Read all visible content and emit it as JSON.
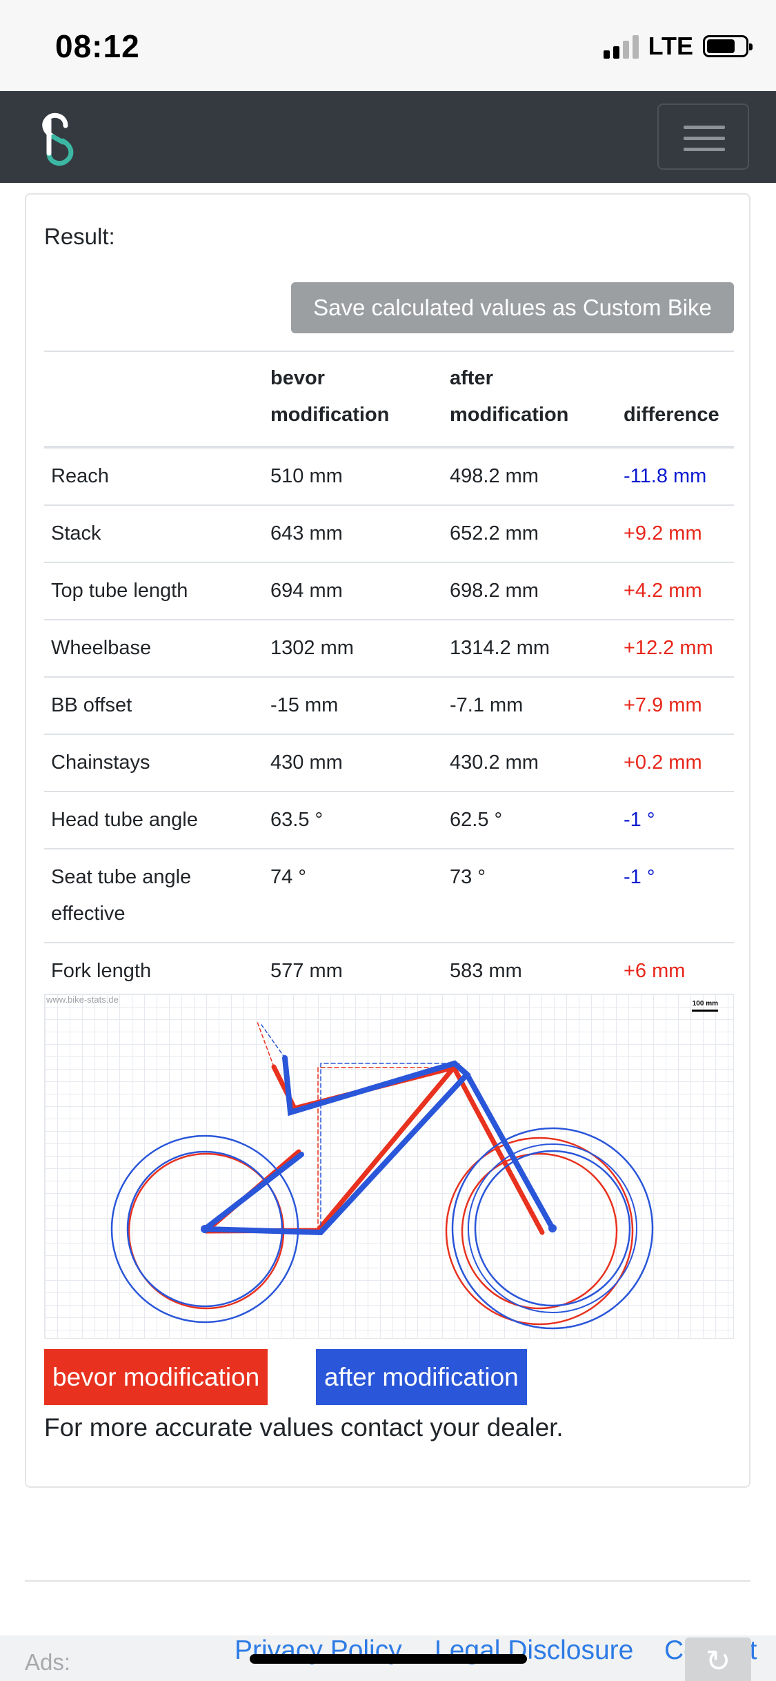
{
  "status_bar": {
    "time": "08:12",
    "network": "LTE",
    "icons": [
      "signal-icon",
      "battery-icon"
    ]
  },
  "navbar": {
    "logo_icon": "bike-stats-logo",
    "menu_icon": "hamburger-icon"
  },
  "result": {
    "title": "Result:",
    "save_button": "Save calculated values as Custom Bike"
  },
  "table": {
    "headers": [
      "",
      "bevor modification",
      "after modification",
      "difference"
    ],
    "rows": [
      {
        "label": "Reach",
        "before": "510 mm",
        "after": "498.2 mm",
        "difference": "-11.8 mm",
        "sign": "neg"
      },
      {
        "label": "Stack",
        "before": "643 mm",
        "after": "652.2 mm",
        "difference": "+9.2 mm",
        "sign": "pos"
      },
      {
        "label": "Top tube length",
        "before": "694 mm",
        "after": "698.2 mm",
        "difference": "+4.2 mm",
        "sign": "pos"
      },
      {
        "label": "Wheelbase",
        "before": "1302 mm",
        "after": "1314.2 mm",
        "difference": "+12.2 mm",
        "sign": "pos"
      },
      {
        "label": "BB offset",
        "before": "-15 mm",
        "after": "-7.1 mm",
        "difference": "+7.9 mm",
        "sign": "pos"
      },
      {
        "label": "Chainstays",
        "before": "430 mm",
        "after": "430.2 mm",
        "difference": "+0.2 mm",
        "sign": "pos"
      },
      {
        "label": "Head tube angle",
        "before": "63.5 °",
        "after": "62.5 °",
        "difference": "-1 °",
        "sign": "neg"
      },
      {
        "label": "Seat tube angle effective",
        "before": "74 °",
        "after": "73 °",
        "difference": "-1 °",
        "sign": "neg"
      },
      {
        "label": "Fork length",
        "before": "577 mm",
        "after": "583 mm",
        "difference": "+6 mm",
        "sign": "pos"
      }
    ]
  },
  "drawing": {
    "watermark": "www.bike-stats.de",
    "scale_label": "100 mm",
    "colors": {
      "before": "#e8321f",
      "after": "#2a56d9"
    }
  },
  "legend": {
    "before": "bevor modification",
    "after": "after modification"
  },
  "note": "For more accurate values contact your dealer.",
  "footer": {
    "ads_label": "Ads:",
    "links": [
      "Privacy Policy",
      "Legal Disclosure",
      "Contact"
    ],
    "reload_icon": "reload-icon"
  }
}
